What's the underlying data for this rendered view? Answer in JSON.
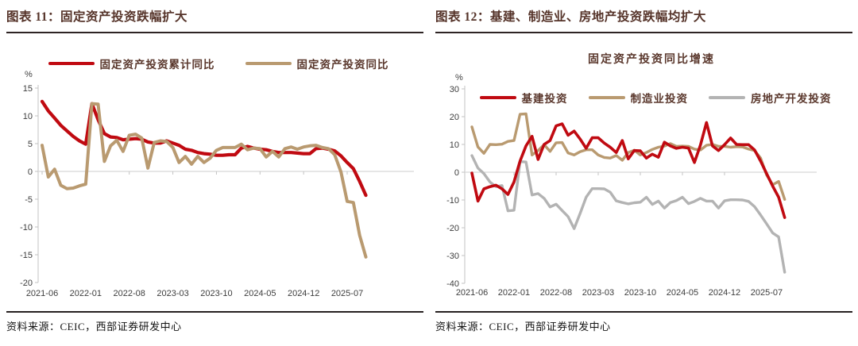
{
  "figures": [
    {
      "header": "图表 11：固定资产投资跌幅扩大",
      "source": "资料来源：CEIC，西部证券研发中心"
    },
    {
      "header": "图表 12：基建、制造业、房地产投资跌幅均扩大",
      "source": "资料来源：CEIC，西部证券研发中心"
    }
  ],
  "colors": {
    "red": "#c00a11",
    "tan": "#b99a70",
    "gray": "#b3b3b3"
  },
  "chart_data": [
    {
      "type": "line",
      "title": "",
      "xlabel": "",
      "ylabel": "%",
      "ylim": [
        -20,
        15
      ],
      "ytick_step": 5,
      "grid": "zero-line-only",
      "legend_position": "top",
      "x": [
        "2021-06",
        "2021-07",
        "2021-08",
        "2021-09",
        "2021-10",
        "2021-11",
        "2021-12",
        "2022-01",
        "2022-02",
        "2022-03",
        "2022-04",
        "2022-05",
        "2022-06",
        "2022-07",
        "2022-08",
        "2022-09",
        "2022-10",
        "2022-11",
        "2022-12",
        "2023-01",
        "2023-02",
        "2023-03",
        "2023-04",
        "2023-05",
        "2023-06",
        "2023-07",
        "2023-08",
        "2023-09",
        "2023-10",
        "2023-11",
        "2023-12",
        "2024-01",
        "2024-02",
        "2024-03",
        "2024-04",
        "2024-05",
        "2024-06",
        "2024-07",
        "2024-08",
        "2024-09",
        "2024-10",
        "2024-11",
        "2024-12",
        "2025-01",
        "2025-02",
        "2025-03",
        "2025-04",
        "2025-05",
        "2025-06",
        "2025-07",
        "2025-08",
        "2025-09",
        "2025-10"
      ],
      "x_tick_indices": [
        0,
        7,
        14,
        21,
        28,
        35,
        42,
        49
      ],
      "series": [
        {
          "key": "fai-cumulative-yoy",
          "name": "固定资产投资累计同比",
          "color": "#c00a11",
          "values": [
            12.6,
            10.9,
            9.6,
            8.3,
            7.3,
            6.3,
            5.5,
            4.9,
            12.2,
            9.3,
            6.8,
            6.2,
            6.1,
            5.7,
            5.8,
            5.9,
            5.8,
            5.3,
            5.1,
            5.1,
            5.5,
            5.1,
            4.7,
            4.0,
            3.8,
            3.4,
            3.2,
            3.1,
            2.9,
            2.9,
            3.0,
            3.0,
            4.2,
            4.5,
            4.2,
            4.0,
            3.9,
            3.6,
            3.4,
            3.4,
            3.4,
            3.3,
            3.2,
            3.2,
            4.1,
            4.2,
            4.0,
            3.7,
            2.8,
            1.6,
            0.5,
            -1.8,
            -4.3
          ]
        },
        {
          "key": "fai-monthly-yoy",
          "name": "固定资产投资同比",
          "color": "#b99a70",
          "values": [
            4.7,
            -1.0,
            0.4,
            -2.5,
            -3.1,
            -3.0,
            -2.6,
            -2.3,
            12.2,
            12.1,
            1.8,
            4.6,
            5.6,
            3.6,
            6.5,
            6.7,
            6.0,
            0.6,
            5.2,
            5.5,
            5.4,
            4.3,
            1.6,
            2.7,
            1.3,
            2.7,
            1.6,
            2.4,
            3.8,
            4.3,
            4.3,
            4.3,
            4.9,
            3.9,
            4.2,
            4.1,
            2.6,
            3.6,
            2.6,
            4.1,
            4.4,
            4.0,
            4.4,
            4.6,
            4.7,
            4.3,
            4.1,
            3.0,
            -0.1,
            -5.4,
            -5.6,
            -11.5,
            -15.4
          ]
        }
      ]
    },
    {
      "type": "line",
      "title": "固定资产投资同比增速",
      "xlabel": "",
      "ylabel": "%",
      "ylim": [
        -40,
        30
      ],
      "ytick_step": 10,
      "grid": "zero-line-only",
      "legend_position": "top-inside",
      "x": [
        "2021-06",
        "2021-07",
        "2021-08",
        "2021-09",
        "2021-10",
        "2021-11",
        "2021-12",
        "2022-01",
        "2022-02",
        "2022-03",
        "2022-04",
        "2022-05",
        "2022-06",
        "2022-07",
        "2022-08",
        "2022-09",
        "2022-10",
        "2022-11",
        "2022-12",
        "2023-01",
        "2023-02",
        "2023-03",
        "2023-04",
        "2023-05",
        "2023-06",
        "2023-07",
        "2023-08",
        "2023-09",
        "2023-10",
        "2023-11",
        "2023-12",
        "2024-01",
        "2024-02",
        "2024-03",
        "2024-04",
        "2024-05",
        "2024-06",
        "2024-07",
        "2024-08",
        "2024-09",
        "2024-10",
        "2024-11",
        "2024-12",
        "2025-01",
        "2025-02",
        "2025-03",
        "2025-04",
        "2025-05",
        "2025-06",
        "2025-07",
        "2025-08",
        "2025-09",
        "2025-10"
      ],
      "x_tick_indices": [
        0,
        7,
        14,
        21,
        28,
        35,
        42,
        49
      ],
      "series": [
        {
          "key": "infrastructure-investment",
          "name": "基建投资",
          "color": "#c00a11",
          "values": [
            -0.3,
            -10.4,
            -6.0,
            -5.2,
            -4.7,
            -6.0,
            -8.0,
            -3.5,
            4.0,
            9.5,
            12.9,
            4.6,
            10.0,
            11.4,
            16.7,
            17.4,
            13.3,
            14.8,
            11.9,
            8.6,
            12.4,
            12.4,
            10.5,
            9.0,
            7.1,
            11.4,
            4.8,
            7.8,
            7.7,
            5.1,
            6.5,
            5.4,
            10.8,
            9.5,
            8.6,
            9.0,
            8.7,
            3.5,
            9.8,
            17.9,
            9.5,
            7.8,
            9.9,
            12.3,
            10.0,
            9.9,
            9.9,
            8.0,
            4.0,
            -0.5,
            -5.0,
            -9.0,
            -16.3
          ]
        },
        {
          "key": "manufacturing-investment",
          "name": "制造业投资",
          "color": "#b99a70",
          "values": [
            16.3,
            9.1,
            6.8,
            10.0,
            9.9,
            10.1,
            11.1,
            11.4,
            20.9,
            21.0,
            6.2,
            7.8,
            9.9,
            7.5,
            10.6,
            10.7,
            6.9,
            6.2,
            7.4,
            8.1,
            8.1,
            6.2,
            5.3,
            5.1,
            6.0,
            4.3,
            7.1,
            7.9,
            6.2,
            7.1,
            8.2,
            9.0,
            9.4,
            10.3,
            9.3,
            9.4,
            9.3,
            8.3,
            8.0,
            9.7,
            10.0,
            9.3,
            9.3,
            9.0,
            9.2,
            9.1,
            8.3,
            7.8,
            5.1,
            -1.0,
            -4.5,
            -3.3,
            -9.8
          ]
        },
        {
          "key": "real-estate-development-investment",
          "name": "房地产开发投资",
          "color": "#b3b3b3",
          "values": [
            6.0,
            1.5,
            -0.5,
            -3.5,
            -5.2,
            -4.8,
            -13.9,
            -13.7,
            3.8,
            3.7,
            -8.2,
            -7.7,
            -9.4,
            -12.5,
            -11.5,
            -13.8,
            -16.0,
            -20.3,
            -14.8,
            -9.0,
            -5.9,
            -5.9,
            -6.0,
            -7.2,
            -10.3,
            -10.9,
            -11.4,
            -11.0,
            -10.8,
            -9.0,
            -11.6,
            -10.4,
            -12.9,
            -10.9,
            -10.2,
            -9.0,
            -11.3,
            -10.5,
            -9.4,
            -10.4,
            -10.4,
            -12.9,
            -10.3,
            -9.9,
            -9.9,
            -10.0,
            -10.5,
            -12.4,
            -15.4,
            -18.6,
            -21.9,
            -23.3,
            -36.0
          ]
        }
      ]
    }
  ]
}
